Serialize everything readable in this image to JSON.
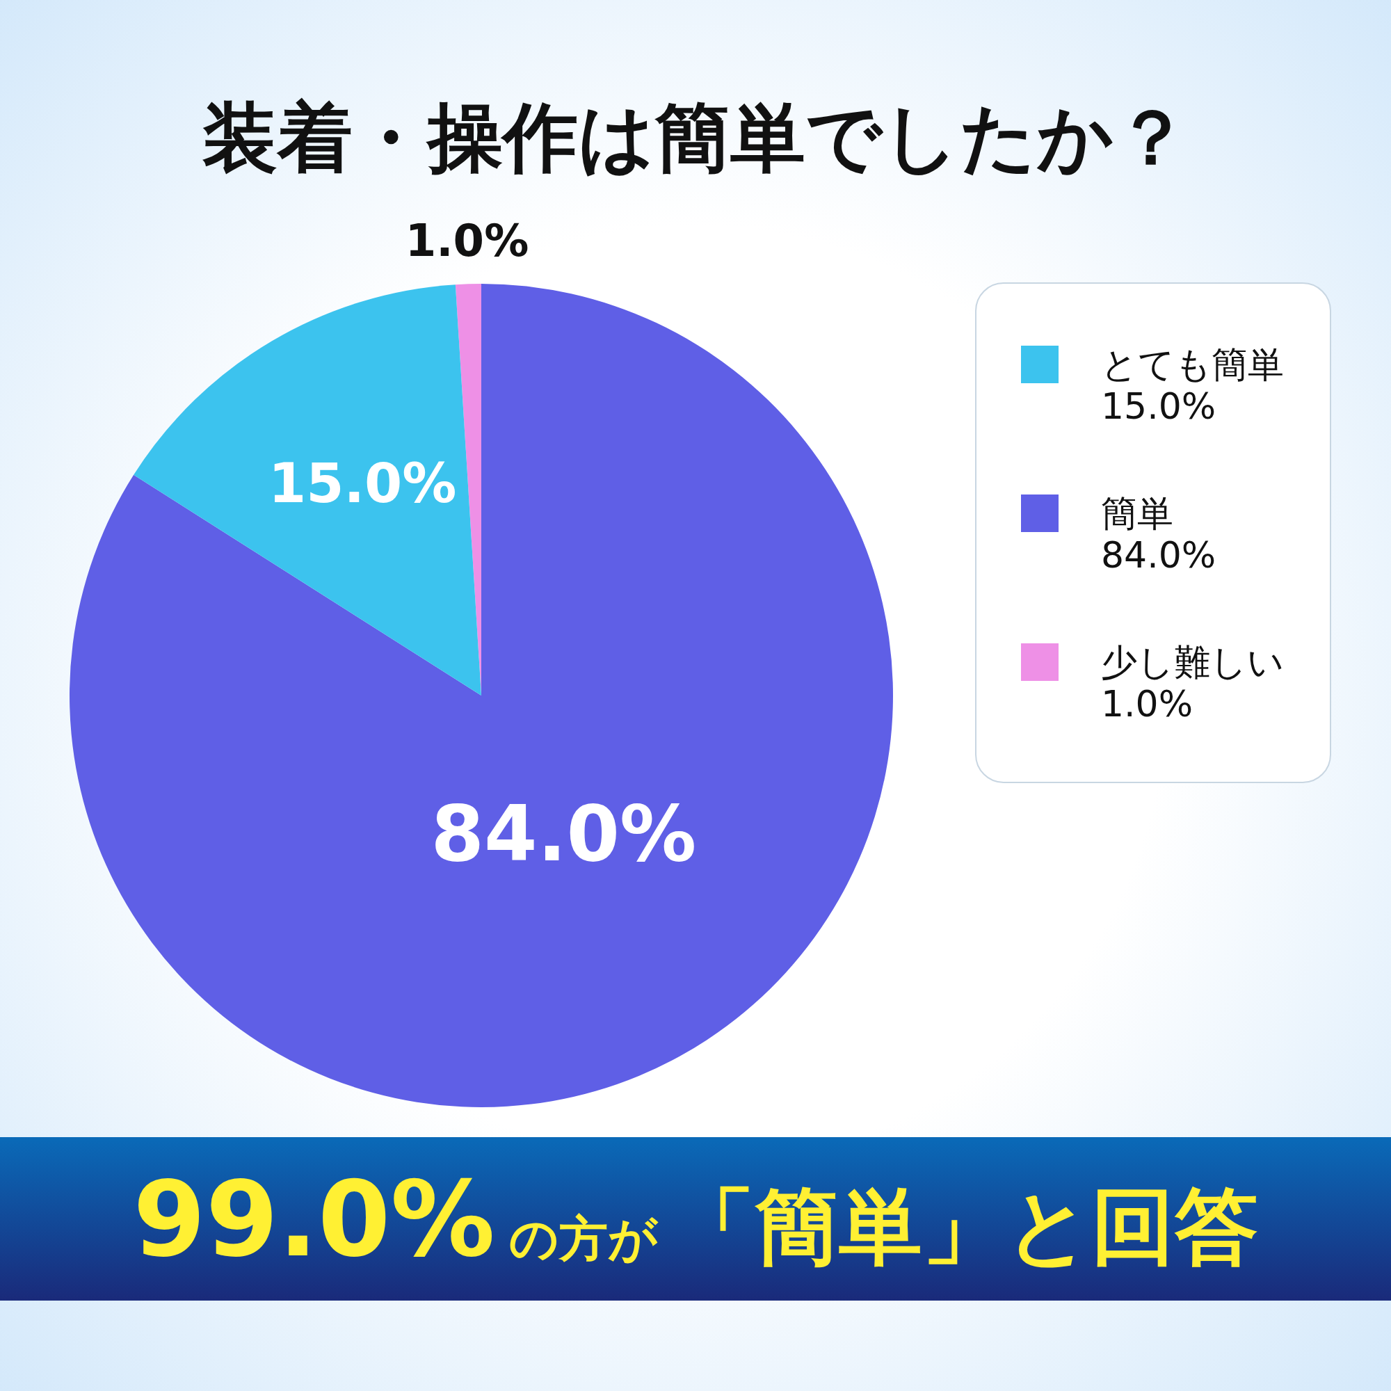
{
  "chart_data": {
    "type": "pie",
    "title": "装着・操作は簡単でしたか？",
    "categories": [
      "とても簡単",
      "簡単",
      "少し難しい"
    ],
    "values": [
      15,
      84,
      1
    ],
    "colors": [
      "#3cc3ee",
      "#5f5fe6",
      "#ee90e6"
    ],
    "value_labels": [
      "15.0%",
      "84.0%",
      "1.0%"
    ],
    "legend": "right",
    "annotations": [
      "99.0%",
      "の方が",
      "「簡単」と回答"
    ]
  }
}
